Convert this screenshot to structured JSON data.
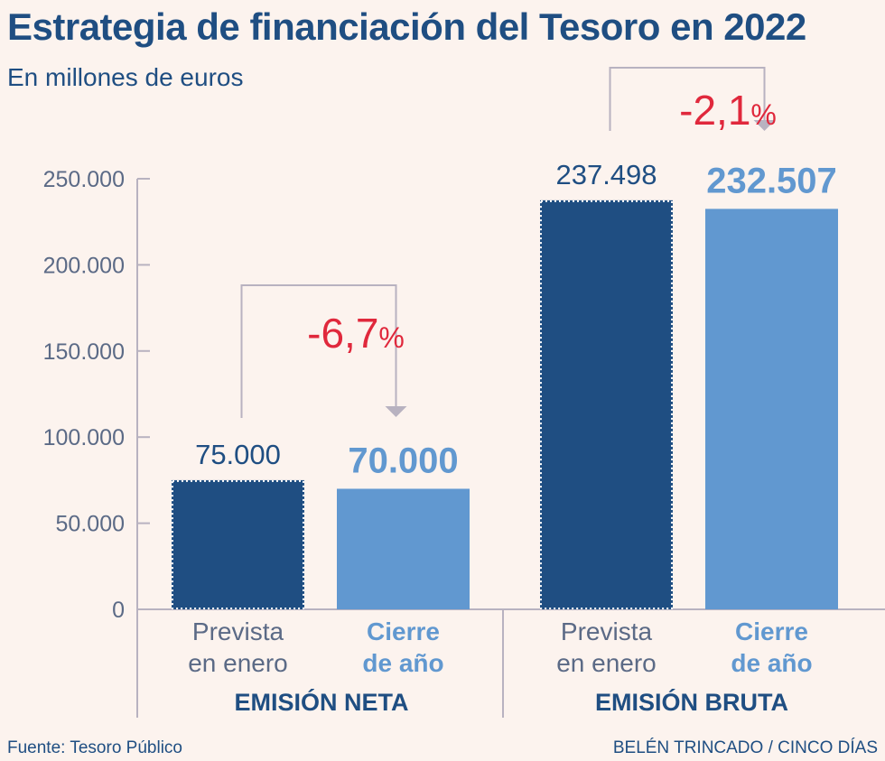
{
  "header": {
    "title": "Estrategia de financiación del Tesoro en 2022",
    "subtitle": "En millones de euros"
  },
  "footer": {
    "source": "Fuente: Tesoro Público",
    "credit": "BELÉN TRINCADO / CINCO DÍAS"
  },
  "colors": {
    "prevista": "#1f4e82",
    "cierre": "#6198d0",
    "change": "#e0283c",
    "axis": "#b8b2c0",
    "text_dark": "#1f4e82"
  },
  "chart_data": {
    "type": "bar",
    "title": "Estrategia de financiación del Tesoro en 2022",
    "ylabel": "En millones de euros",
    "ylim": [
      0,
      250000
    ],
    "yticks": [
      "0",
      "50.000",
      "100.000",
      "150.000",
      "200.000",
      "250.000"
    ],
    "groups": [
      {
        "name": "EMISIÓN NETA",
        "bars": [
          {
            "label_line1": "Prevista",
            "label_line2": "en enero",
            "value": 75000,
            "value_label": "75.000",
            "series": "prevista"
          },
          {
            "label_line1": "Cierre",
            "label_line2": "de año",
            "value": 70000,
            "value_label": "70.000",
            "series": "cierre"
          }
        ],
        "change_number": "-6,7",
        "change_unit": "%"
      },
      {
        "name": "EMISIÓN BRUTA",
        "bars": [
          {
            "label_line1": "Prevista",
            "label_line2": "en enero",
            "value": 237498,
            "value_label": "237.498",
            "series": "prevista"
          },
          {
            "label_line1": "Cierre",
            "label_line2": "de año",
            "value": 232507,
            "value_label": "232.507",
            "series": "cierre"
          }
        ],
        "change_number": "-2,1",
        "change_unit": "%"
      }
    ]
  }
}
